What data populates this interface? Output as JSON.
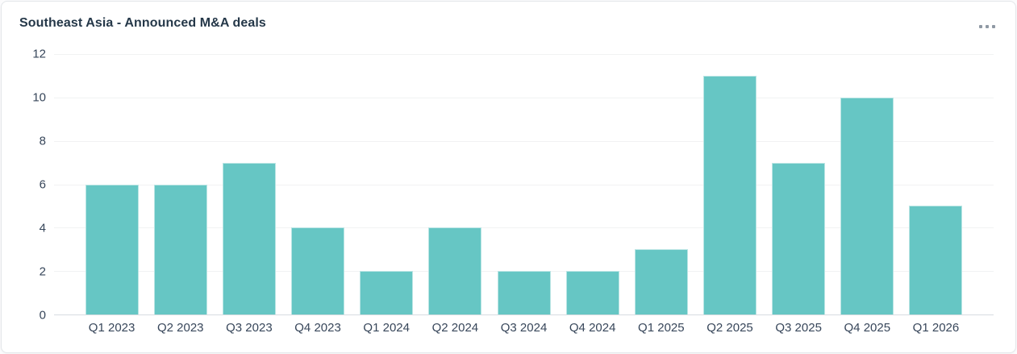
{
  "card": {
    "title": "Southeast Asia - Announced M&A deals",
    "menu_icon": "ellipsis-menu"
  },
  "chart_data": {
    "type": "bar",
    "title": "Southeast Asia - Announced M&A deals",
    "categories": [
      "Q1 2023",
      "Q2 2023",
      "Q3 2023",
      "Q4 2023",
      "Q1 2024",
      "Q2 2024",
      "Q3 2024",
      "Q4 2024",
      "Q1 2025",
      "Q2 2025",
      "Q3 2025",
      "Q4 2025",
      "Q1 2026"
    ],
    "values": [
      6,
      6,
      7,
      4,
      2,
      4,
      2,
      2,
      3,
      11,
      7,
      10,
      5
    ],
    "xlabel": "",
    "ylabel": "",
    "ylim": [
      0,
      12
    ],
    "yticks": [
      0,
      2,
      4,
      6,
      8,
      10,
      12
    ],
    "grid": "horizontal",
    "legend": "none",
    "bar_color": "#66c6c4"
  },
  "colors": {
    "bar": "#66c6c4",
    "title_text": "#253849",
    "axis_text": "#37465a",
    "gridline": "#f1f2f3",
    "axis_line": "#d7dce1",
    "card_border": "#e3e6e9",
    "menu_dots": "#8f99a4"
  }
}
